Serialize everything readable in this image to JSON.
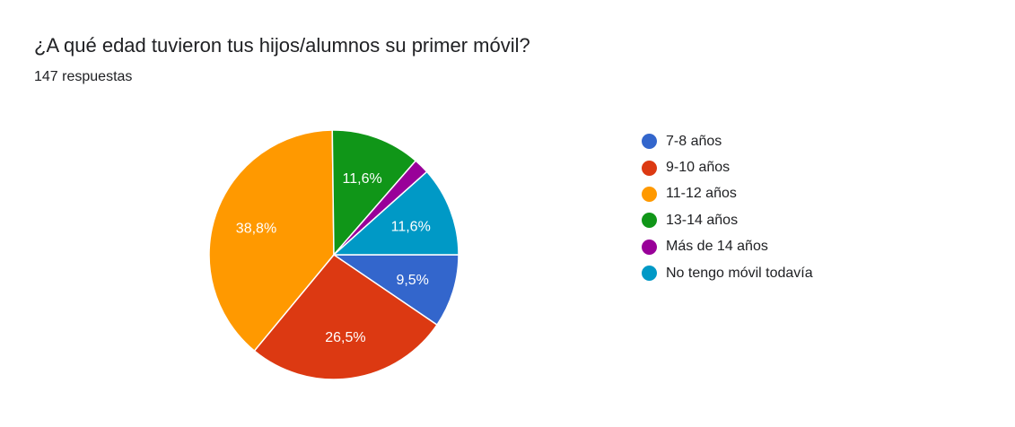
{
  "title": "¿A qué edad tuvieron tus hijos/alumnos su primer móvil?",
  "subtitle": "147 respuestas",
  "chart_data": {
    "type": "pie",
    "title": "¿A qué edad tuvieron tus hijos/alumnos su primer móvil?",
    "categories": [
      "7-8 años",
      "9-10 años",
      "11-12 años",
      "13-14 años",
      "Más de 14 años",
      "No tengo móvil todavía"
    ],
    "values": [
      9.5,
      26.5,
      38.8,
      11.6,
      2.0,
      11.6
    ],
    "labels": [
      "9,5%",
      "26,5%",
      "38,8%",
      "11,6%",
      "",
      "11,6%"
    ],
    "colors": [
      "#3366cc",
      "#dc3912",
      "#ff9900",
      "#109618",
      "#990099",
      "#0099c6"
    ],
    "legend": "right"
  }
}
